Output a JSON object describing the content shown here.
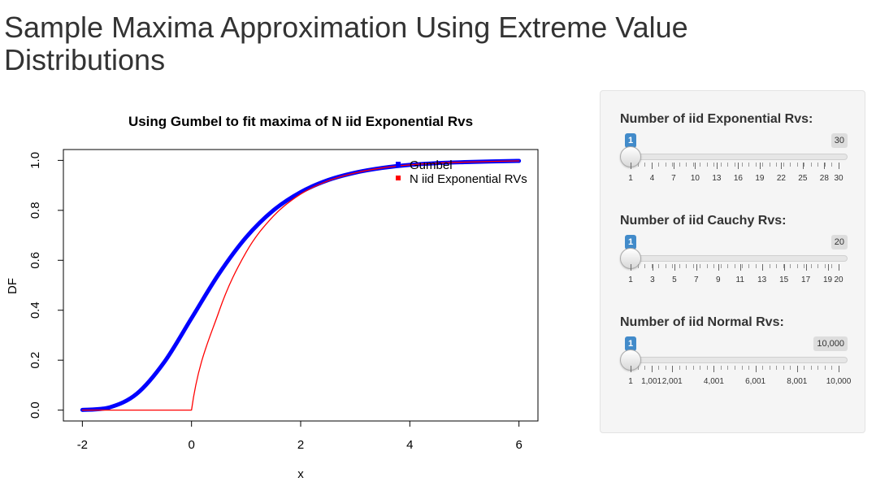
{
  "page": {
    "title": "Sample Maxima Approximation Using Extreme Value Distributions"
  },
  "sidebar": {
    "sliders": [
      {
        "label": "Number of iid Exponential Rvs:",
        "min_label": "1",
        "max_label": "30",
        "value": 1,
        "min": 1,
        "max": 30,
        "tick_labels": [
          "1",
          "4",
          "7",
          "10",
          "13",
          "16",
          "19",
          "22",
          "25",
          "28",
          "30"
        ]
      },
      {
        "label": "Number of iid Cauchy Rvs:",
        "min_label": "1",
        "max_label": "20",
        "value": 1,
        "min": 1,
        "max": 20,
        "tick_labels": [
          "1",
          "3",
          "5",
          "7",
          "9",
          "11",
          "13",
          "15",
          "17",
          "19",
          "20"
        ]
      },
      {
        "label": "Number of iid Normal Rvs:",
        "min_label": "1",
        "max_label": "10,000",
        "value": 1,
        "min": 1,
        "max": 10000,
        "tick_labels": [
          "1",
          "1,001",
          "2,001",
          "4,001",
          "6,001",
          "8,001",
          "10,000"
        ]
      }
    ]
  },
  "chart_data": {
    "type": "line",
    "title": "Using Gumbel to fit maxima of N iid Exponential Rvs",
    "xlabel": "x",
    "ylabel": "DF",
    "xlim": [
      -2,
      6
    ],
    "ylim": [
      0,
      1
    ],
    "x_ticks": [
      "-2",
      "0",
      "2",
      "4",
      "6"
    ],
    "y_ticks": [
      "0.0",
      "0.2",
      "0.4",
      "0.6",
      "0.8",
      "1.0"
    ],
    "legend_position": "top-right",
    "series": [
      {
        "name": "Gumbel",
        "color": "#0000ff",
        "x": [
          -2,
          -1.5,
          -1,
          -0.5,
          0,
          0.5,
          1,
          1.5,
          2,
          2.5,
          3,
          3.5,
          4,
          4.5,
          5,
          5.5,
          6
        ],
        "values": [
          0.001,
          0.011,
          0.066,
          0.192,
          0.368,
          0.545,
          0.692,
          0.8,
          0.873,
          0.921,
          0.951,
          0.97,
          0.982,
          0.989,
          0.993,
          0.996,
          0.998
        ]
      },
      {
        "name": "N iid Exponential RVs",
        "color": "#ff0000",
        "x": [
          -2,
          -1,
          0,
          0.5,
          1,
          1.5,
          2,
          2.5,
          3,
          3.5,
          4,
          4.5,
          5,
          5.5,
          6
        ],
        "values": [
          0,
          0,
          0,
          0.393,
          0.632,
          0.777,
          0.865,
          0.918,
          0.95,
          0.97,
          0.982,
          0.989,
          0.993,
          0.996,
          0.998
        ]
      }
    ]
  }
}
